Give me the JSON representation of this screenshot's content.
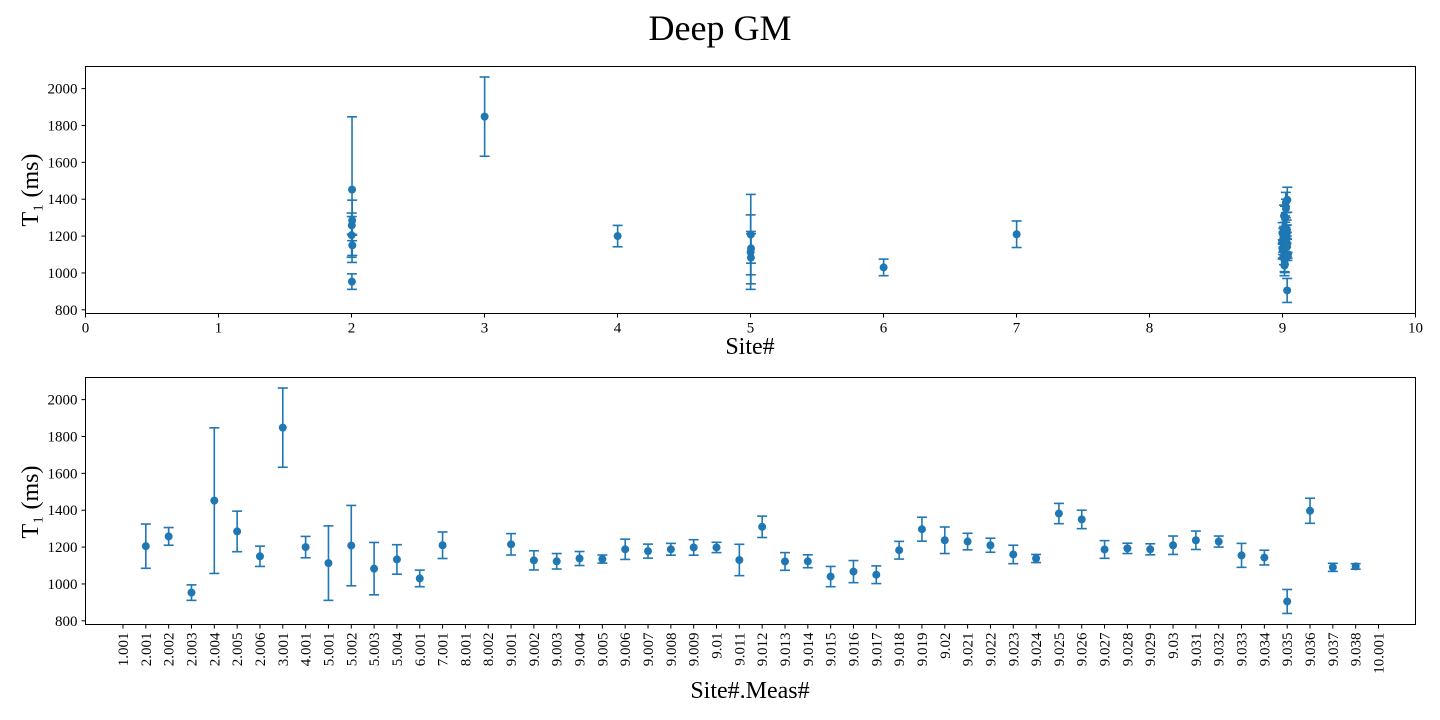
{
  "title": "Deep GM",
  "color": "#1f77b4",
  "chart_data": [
    {
      "type": "scatter",
      "error_bars": true,
      "xlabel": "Site#",
      "ylabel": "T₁ (ms)",
      "xlim": [
        0,
        10
      ],
      "ylim": [
        780,
        2120
      ],
      "xticks": [
        0,
        1,
        2,
        3,
        4,
        5,
        6,
        7,
        8,
        9,
        10
      ],
      "yticks": [
        800,
        1000,
        1200,
        1400,
        1600,
        1800,
        2000
      ],
      "grid": false,
      "points": [
        {
          "x": 2.001,
          "y": 1205,
          "err": 120
        },
        {
          "x": 2.002,
          "y": 1258,
          "err": 48
        },
        {
          "x": 2.003,
          "y": 953,
          "err": 42
        },
        {
          "x": 2.004,
          "y": 1452,
          "err": 395
        },
        {
          "x": 2.005,
          "y": 1285,
          "err": 110
        },
        {
          "x": 2.006,
          "y": 1150,
          "err": 55
        },
        {
          "x": 3.001,
          "y": 1848,
          "err": 215
        },
        {
          "x": 4.001,
          "y": 1200,
          "err": 58
        },
        {
          "x": 5.001,
          "y": 1113,
          "err": 202
        },
        {
          "x": 5.002,
          "y": 1208,
          "err": 218
        },
        {
          "x": 5.003,
          "y": 1083,
          "err": 142
        },
        {
          "x": 5.004,
          "y": 1133,
          "err": 80
        },
        {
          "x": 6.001,
          "y": 1030,
          "err": 45
        },
        {
          "x": 7.001,
          "y": 1210,
          "err": 72
        },
        {
          "x": 9.001,
          "y": 1215,
          "err": 58
        },
        {
          "x": 9.002,
          "y": 1128,
          "err": 52
        },
        {
          "x": 9.003,
          "y": 1123,
          "err": 42
        },
        {
          "x": 9.004,
          "y": 1138,
          "err": 38
        },
        {
          "x": 9.005,
          "y": 1135,
          "err": 22
        },
        {
          "x": 9.006,
          "y": 1188,
          "err": 55
        },
        {
          "x": 9.007,
          "y": 1178,
          "err": 38
        },
        {
          "x": 9.008,
          "y": 1188,
          "err": 32
        },
        {
          "x": 9.009,
          "y": 1198,
          "err": 42
        },
        {
          "x": 9.01,
          "y": 1198,
          "err": 28
        },
        {
          "x": 9.011,
          "y": 1130,
          "err": 85
        },
        {
          "x": 9.012,
          "y": 1310,
          "err": 58
        },
        {
          "x": 9.013,
          "y": 1122,
          "err": 48
        },
        {
          "x": 9.014,
          "y": 1123,
          "err": 35
        },
        {
          "x": 9.015,
          "y": 1040,
          "err": 55
        },
        {
          "x": 9.016,
          "y": 1067,
          "err": 60
        },
        {
          "x": 9.017,
          "y": 1050,
          "err": 48
        },
        {
          "x": 9.018,
          "y": 1183,
          "err": 48
        },
        {
          "x": 9.019,
          "y": 1297,
          "err": 65
        },
        {
          "x": 9.02,
          "y": 1237,
          "err": 72
        },
        {
          "x": 9.021,
          "y": 1230,
          "err": 45
        },
        {
          "x": 9.022,
          "y": 1210,
          "err": 38
        },
        {
          "x": 9.023,
          "y": 1160,
          "err": 50
        },
        {
          "x": 9.024,
          "y": 1138,
          "err": 22
        },
        {
          "x": 9.025,
          "y": 1382,
          "err": 55
        },
        {
          "x": 9.026,
          "y": 1350,
          "err": 50
        },
        {
          "x": 9.027,
          "y": 1187,
          "err": 48
        },
        {
          "x": 9.028,
          "y": 1193,
          "err": 28
        },
        {
          "x": 9.029,
          "y": 1188,
          "err": 30
        },
        {
          "x": 9.03,
          "y": 1210,
          "err": 50
        },
        {
          "x": 9.031,
          "y": 1237,
          "err": 50
        },
        {
          "x": 9.032,
          "y": 1230,
          "err": 30
        },
        {
          "x": 9.033,
          "y": 1155,
          "err": 65
        },
        {
          "x": 9.034,
          "y": 1143,
          "err": 40
        },
        {
          "x": 9.035,
          "y": 905,
          "err": 65
        },
        {
          "x": 9.036,
          "y": 1397,
          "err": 68
        },
        {
          "x": 9.037,
          "y": 1090,
          "err": 22
        },
        {
          "x": 9.038,
          "y": 1095,
          "err": 15
        }
      ]
    },
    {
      "type": "scatter",
      "error_bars": true,
      "xlabel": "Site#.Meas#",
      "ylabel": "T₁ (ms)",
      "ylim": [
        780,
        2120
      ],
      "yticks": [
        800,
        1000,
        1200,
        1400,
        1600,
        1800,
        2000
      ],
      "grid": false,
      "categories": [
        "1.001",
        "2.001",
        "2.002",
        "2.003",
        "2.004",
        "2.005",
        "2.006",
        "3.001",
        "4.001",
        "5.001",
        "5.002",
        "5.003",
        "5.004",
        "6.001",
        "7.001",
        "8.001",
        "8.002",
        "9.001",
        "9.002",
        "9.003",
        "9.004",
        "9.005",
        "9.006",
        "9.007",
        "9.008",
        "9.009",
        "9.01",
        "9.011",
        "9.012",
        "9.013",
        "9.014",
        "9.015",
        "9.016",
        "9.017",
        "9.018",
        "9.019",
        "9.02",
        "9.021",
        "9.022",
        "9.023",
        "9.024",
        "9.025",
        "9.026",
        "9.027",
        "9.028",
        "9.029",
        "9.03",
        "9.031",
        "9.032",
        "9.033",
        "9.034",
        "9.035",
        "9.036",
        "9.037",
        "9.038",
        "10.001"
      ],
      "values": [
        null,
        1205,
        1258,
        953,
        1452,
        1285,
        1150,
        1848,
        1200,
        1113,
        1208,
        1083,
        1133,
        1030,
        1210,
        null,
        null,
        1215,
        1128,
        1123,
        1138,
        1135,
        1188,
        1178,
        1188,
        1198,
        1198,
        1130,
        1310,
        1122,
        1123,
        1040,
        1067,
        1050,
        1183,
        1297,
        1237,
        1230,
        1210,
        1160,
        1138,
        1382,
        1350,
        1187,
        1193,
        1188,
        1210,
        1237,
        1230,
        1155,
        1143,
        905,
        1397,
        1090,
        1095,
        null
      ],
      "errors": [
        null,
        120,
        48,
        42,
        395,
        110,
        55,
        215,
        58,
        202,
        218,
        142,
        80,
        45,
        72,
        null,
        null,
        58,
        52,
        42,
        38,
        22,
        55,
        38,
        32,
        42,
        28,
        85,
        58,
        48,
        35,
        55,
        60,
        48,
        48,
        65,
        72,
        45,
        38,
        50,
        22,
        55,
        50,
        48,
        28,
        30,
        50,
        50,
        30,
        65,
        40,
        65,
        68,
        22,
        15,
        null
      ]
    }
  ]
}
